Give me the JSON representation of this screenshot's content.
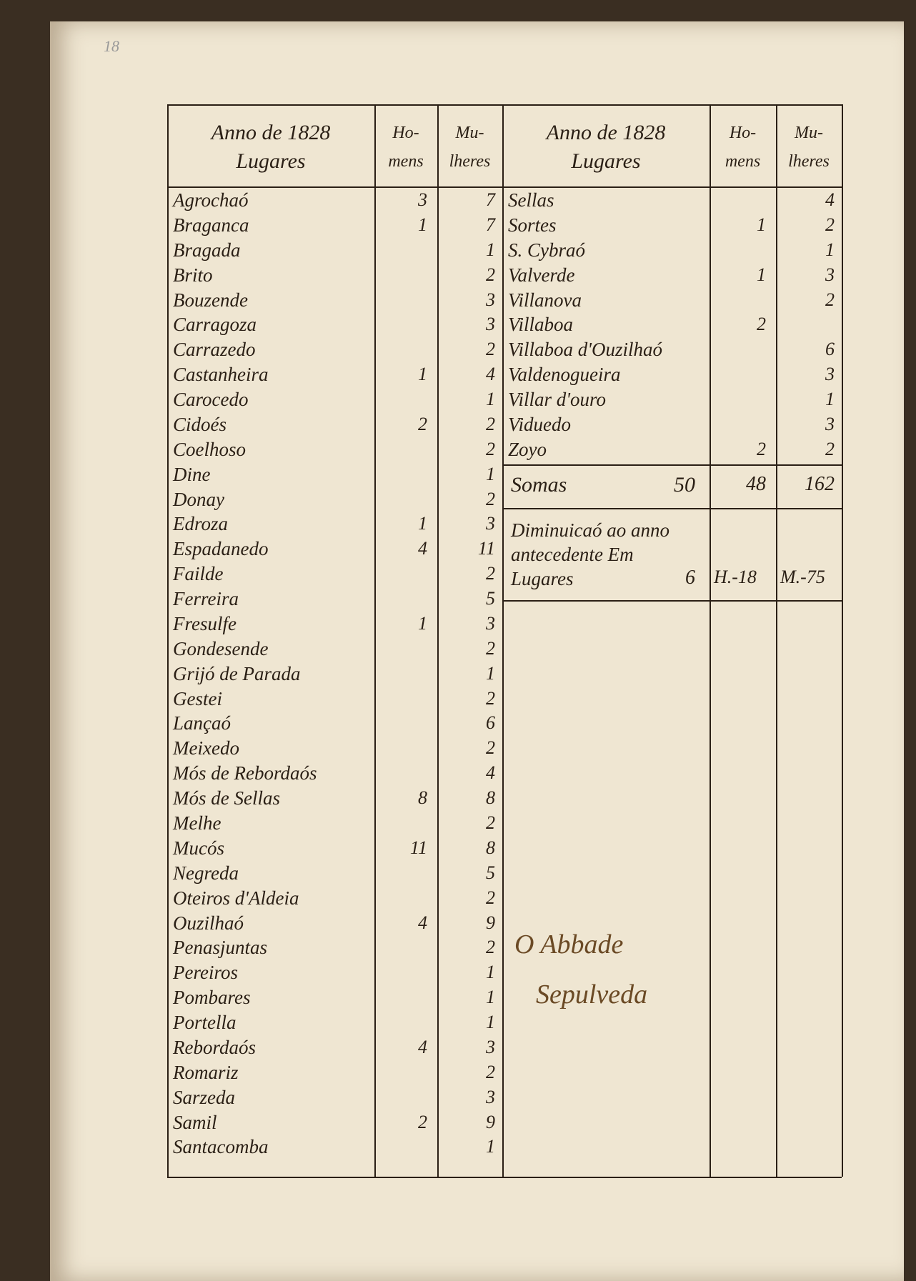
{
  "page_number": "18",
  "left_table": {
    "header": {
      "place": "Anno de 1828 Lugares",
      "homens": "Ho-mens",
      "mulheres": "Mu-lheres"
    },
    "rows": [
      {
        "place": "Agrochaó",
        "homens": 3,
        "mulheres": 7
      },
      {
        "place": "Braganca",
        "homens": 1,
        "mulheres": 7
      },
      {
        "place": "Bragada",
        "mulheres": 1
      },
      {
        "place": "Brito",
        "mulheres": 2
      },
      {
        "place": "Bouzende",
        "mulheres": 3
      },
      {
        "place": "Carragoza",
        "mulheres": 3
      },
      {
        "place": "Carrazedo",
        "mulheres": 2
      },
      {
        "place": "Castanheira",
        "homens": 1,
        "mulheres": 4
      },
      {
        "place": "Carocedo",
        "mulheres": 1
      },
      {
        "place": "Cidoés",
        "homens": 2,
        "mulheres": 2
      },
      {
        "place": "Coelhoso",
        "mulheres": 2
      },
      {
        "place": "Dine",
        "mulheres": 1
      },
      {
        "place": "Donay",
        "mulheres": 2
      },
      {
        "place": "Edroza",
        "homens": 1,
        "mulheres": 3
      },
      {
        "place": "Espadanedo",
        "homens": 4,
        "mulheres": 11
      },
      {
        "place": "Failde",
        "mulheres": 2
      },
      {
        "place": "Ferreira",
        "mulheres": 5
      },
      {
        "place": "Fresulfe",
        "homens": 1,
        "mulheres": 3
      },
      {
        "place": "Gondesende",
        "mulheres": 2
      },
      {
        "place": "Grijó de Parada",
        "mulheres": 1
      },
      {
        "place": "Gestei",
        "mulheres": 2
      },
      {
        "place": "Lançaó",
        "mulheres": 6
      },
      {
        "place": "Meixedo",
        "mulheres": 2
      },
      {
        "place": "Mós de Rebordaós",
        "mulheres": 4
      },
      {
        "place": "Mós de Sellas",
        "homens": 8,
        "mulheres": 8
      },
      {
        "place": "Melhe",
        "mulheres": 2
      },
      {
        "place": "Mucós",
        "homens": 11,
        "mulheres": 8
      },
      {
        "place": "Negreda",
        "mulheres": 5
      },
      {
        "place": "Oteiros d'Aldeia",
        "mulheres": 2
      },
      {
        "place": "Ouzilhaó",
        "homens": 4,
        "mulheres": 9
      },
      {
        "place": "Penasjuntas",
        "mulheres": 2
      },
      {
        "place": "Pereiros",
        "mulheres": 1
      },
      {
        "place": "Pombares",
        "mulheres": 1
      },
      {
        "place": "Portella",
        "mulheres": 1
      },
      {
        "place": "Rebordaós",
        "homens": 4,
        "mulheres": 3
      },
      {
        "place": "Romariz",
        "mulheres": 2
      },
      {
        "place": "Sarzeda",
        "mulheres": 3
      },
      {
        "place": "Samil",
        "homens": 2,
        "mulheres": 9
      },
      {
        "place": "Santacomba",
        "mulheres": 1
      }
    ]
  },
  "right_table": {
    "header": {
      "place": "Anno de 1828 Lugares",
      "homens": "Ho-mens",
      "mulheres": "Mu-lheres"
    },
    "rows": [
      {
        "place": "Sellas",
        "mulheres": 4
      },
      {
        "place": "Sortes",
        "homens": 1,
        "mulheres": 2
      },
      {
        "place": "S. Cybraó",
        "mulheres": 1
      },
      {
        "place": "Valverde",
        "homens": 1,
        "mulheres": 3
      },
      {
        "place": "Villanova",
        "mulheres": 2
      },
      {
        "place": "Villaboa",
        "homens": 2
      },
      {
        "place": "Villaboa d'Ouzilhaó",
        "mulheres": 6
      },
      {
        "place": "Valdenogueira",
        "mulheres": 3
      },
      {
        "place": "Villar d'ouro",
        "mulheres": 1
      },
      {
        "place": "Viduedo",
        "mulheres": 3
      },
      {
        "place": "Zoyo",
        "homens": 2,
        "mulheres": 2
      }
    ],
    "totals": {
      "label": "Somas",
      "lugares": 50,
      "homens": 48,
      "mulheres": 162
    },
    "difference": {
      "label": "Diminuicaó ao anno antecedente Em Lugares",
      "lugares": 6,
      "homens": "H.-18",
      "mulheres": "M.-75"
    }
  },
  "signature": {
    "line1": "O Abbade",
    "line2": "Sepulveda"
  }
}
